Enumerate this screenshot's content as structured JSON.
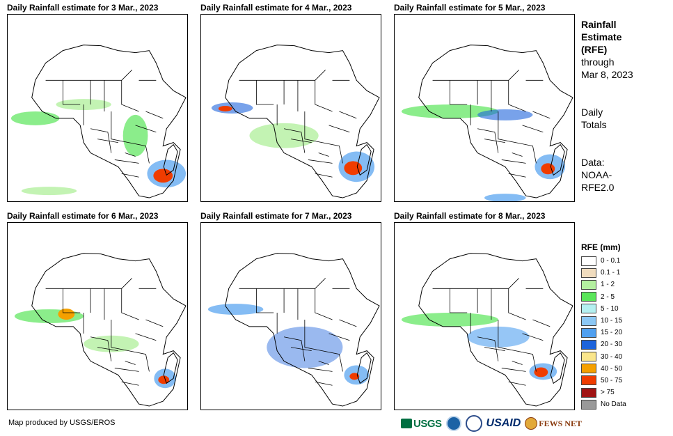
{
  "panels": [
    {
      "title": "Daily Rainfall estimate for 3 Mar., 2023"
    },
    {
      "title": "Daily Rainfall estimate for 4 Mar., 2023"
    },
    {
      "title": "Daily Rainfall estimate for 5 Mar., 2023"
    },
    {
      "title": "Daily Rainfall estimate for 6 Mar., 2023"
    },
    {
      "title": "Daily Rainfall estimate for 7 Mar., 2023"
    },
    {
      "title": "Daily Rainfall estimate for 8 Mar., 2023"
    }
  ],
  "side": {
    "heading_line1": "Rainfall",
    "heading_line2": "Estimate",
    "heading_line3": "(RFE)",
    "through": "through",
    "date": "Mar 8, 2023",
    "daily1": "Daily",
    "daily2": "Totals",
    "data1": "Data:",
    "data2": "NOAA-",
    "data3": "RFE2.0"
  },
  "legend": {
    "title": "RFE (mm)",
    "items": [
      {
        "label": "0 - 0.1",
        "color": "#ffffff"
      },
      {
        "label": "0.1 - 1",
        "color": "#f0dcbe"
      },
      {
        "label": "1 - 2",
        "color": "#b4f0a0"
      },
      {
        "label": "2 - 5",
        "color": "#5ae65a"
      },
      {
        "label": "5 - 10",
        "color": "#b4f0f0"
      },
      {
        "label": "10 - 15",
        "color": "#8cc8f5"
      },
      {
        "label": "15 - 20",
        "color": "#50a0f0"
      },
      {
        "label": "20 - 30",
        "color": "#1e64dc"
      },
      {
        "label": "30 - 40",
        "color": "#fae68c"
      },
      {
        "label": "40 - 50",
        "color": "#f5a000"
      },
      {
        "label": "50 - 75",
        "color": "#f03c00"
      },
      {
        "label": "> 75",
        "color": "#a01414"
      },
      {
        "label": "No Data",
        "color": "#999999"
      }
    ]
  },
  "footer": {
    "credit": "Map produced by USGS/EROS"
  },
  "logos": {
    "usgs": "USGS",
    "usaid": "USAID",
    "fews": "FEWS NET"
  }
}
